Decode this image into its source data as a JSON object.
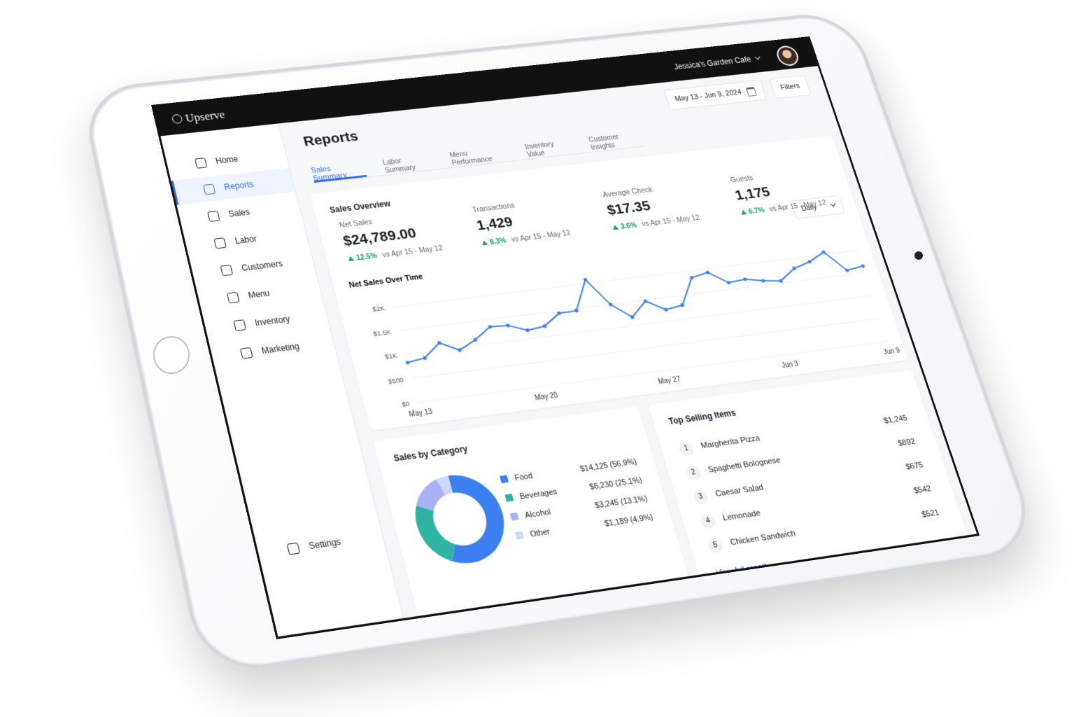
{
  "app": {
    "brand": "Upserve",
    "restaurant": "Jessica's Garden Cafe"
  },
  "nav": {
    "items": [
      "Home",
      "Reports",
      "Sales",
      "Labor",
      "Customers",
      "Menu",
      "Inventory",
      "Marketing"
    ],
    "settings": "Settings"
  },
  "header": {
    "title": "Reports",
    "date_range": "May 13 - Jun 9, 2024",
    "filters": "Filters"
  },
  "tabs": [
    "Sales Summary",
    "Labor Summary",
    "Menu Performance",
    "Inventory Value",
    "Customer Insights"
  ],
  "overview": {
    "title": "Sales Overview",
    "period": "Daily",
    "metrics": [
      {
        "label": "Net Sales",
        "value": "$24,789.00",
        "change": "12.5%",
        "compare": "vs Apr 15 - May 12"
      },
      {
        "label": "Transactions",
        "value": "1,429",
        "change": "8.3%",
        "compare": "vs Apr 15 - May 12"
      },
      {
        "label": "Average Check",
        "value": "$17.35",
        "change": "3.6%",
        "compare": "vs Apr 15 - May 12"
      },
      {
        "label": "Guests",
        "value": "1,175",
        "change": "6.7%",
        "compare": "vs Apr 15 - May 12"
      }
    ]
  },
  "chart_data": [
    {
      "type": "line",
      "title": "Net Sales Over Time",
      "color": "#3b7ff0",
      "grid": true,
      "categories": [
        "May 13",
        null,
        null,
        null,
        null,
        null,
        null,
        "May 20",
        null,
        null,
        null,
        null,
        null,
        null,
        "May 27",
        null,
        null,
        null,
        null,
        null,
        null,
        "Jun 3",
        null,
        null,
        null,
        null,
        null,
        "Jun 9"
      ],
      "values": [
        830,
        880,
        1150,
        950,
        1120,
        1350,
        1330,
        1180,
        1220,
        1450,
        1460,
        2080,
        1500,
        1180,
        1480,
        1250,
        1300,
        1850,
        1920,
        1650,
        1680,
        1600,
        1550,
        1780,
        1880,
        2050,
        1600,
        1650
      ],
      "ylim": [
        0,
        2250
      ],
      "yticks": [
        {
          "value": 0,
          "label": "$0"
        },
        {
          "value": 500,
          "label": "$500"
        },
        {
          "value": 1000,
          "label": "$1K"
        },
        {
          "value": 1500,
          "label": "$1.5K"
        },
        {
          "value": 2000,
          "label": "$2K"
        }
      ]
    },
    {
      "type": "pie",
      "title": "Sales by Category",
      "categories": [
        "Food",
        "Beverages",
        "Alcohol",
        "Other"
      ],
      "values": [
        14125,
        6230,
        3245,
        1189
      ],
      "value_labels": [
        "$14,125 (56.9%)",
        "$6,230 (25.1%)",
        "$3,245 (13.1%)",
        "$1,189 (4.9%)"
      ],
      "colors": [
        "#3b7ff0",
        "#2fb3a4",
        "#a7b1f5",
        "#c9dafc"
      ]
    }
  ],
  "top_items": {
    "title": "Top Selling Items",
    "rows": [
      {
        "rank": "1",
        "name": "Margherita Pizza",
        "value": "$1,245"
      },
      {
        "rank": "2",
        "name": "Spaghetti Bolognese",
        "value": "$892"
      },
      {
        "rank": "3",
        "name": "Caesar Salad",
        "value": "$675"
      },
      {
        "rank": "4",
        "name": "Lemonade",
        "value": "$542"
      },
      {
        "rank": "5",
        "name": "Chicken Sandwich",
        "value": "$521"
      }
    ],
    "link": "View full report"
  }
}
